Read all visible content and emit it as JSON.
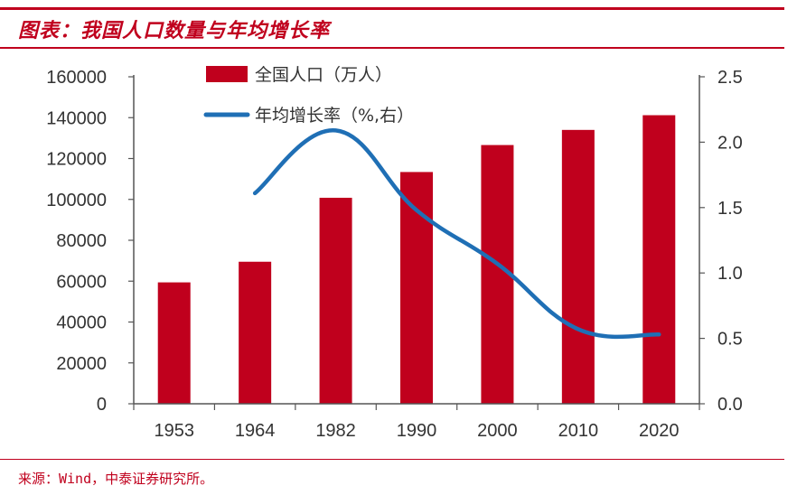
{
  "header": {
    "title": "图表：我国人口数量与年均增长率"
  },
  "footer": {
    "source": "来源：Wind，中泰证券研究所。"
  },
  "colors": {
    "accent": "#c0001d",
    "bar": "#c0001d",
    "line": "#1f6fb5",
    "axis": "#555555",
    "text": "#333333"
  },
  "chart_data": {
    "type": "bar+line",
    "categories": [
      "1953",
      "1964",
      "1982",
      "1990",
      "2000",
      "2010",
      "2020"
    ],
    "series": [
      {
        "name": "全国人口（万人）",
        "kind": "bar",
        "axis": "left",
        "values": [
          59400,
          69500,
          100800,
          113400,
          126600,
          134000,
          141200
        ]
      },
      {
        "name": "年均增长率（%,右）",
        "kind": "line",
        "axis": "right",
        "smooth": true,
        "values": [
          null,
          1.61,
          2.09,
          1.48,
          1.07,
          0.57,
          0.53
        ]
      }
    ],
    "y_left": {
      "min": 0,
      "max": 160000,
      "ticks": [
        "0",
        "20000",
        "40000",
        "60000",
        "80000",
        "100000",
        "120000",
        "140000",
        "160000"
      ]
    },
    "y_right": {
      "min": 0,
      "max": 2.5,
      "ticks": [
        "0.0",
        "0.5",
        "1.0",
        "1.5",
        "2.0",
        "2.5"
      ]
    },
    "legend": {
      "placement": "top-center"
    },
    "grid": false
  }
}
